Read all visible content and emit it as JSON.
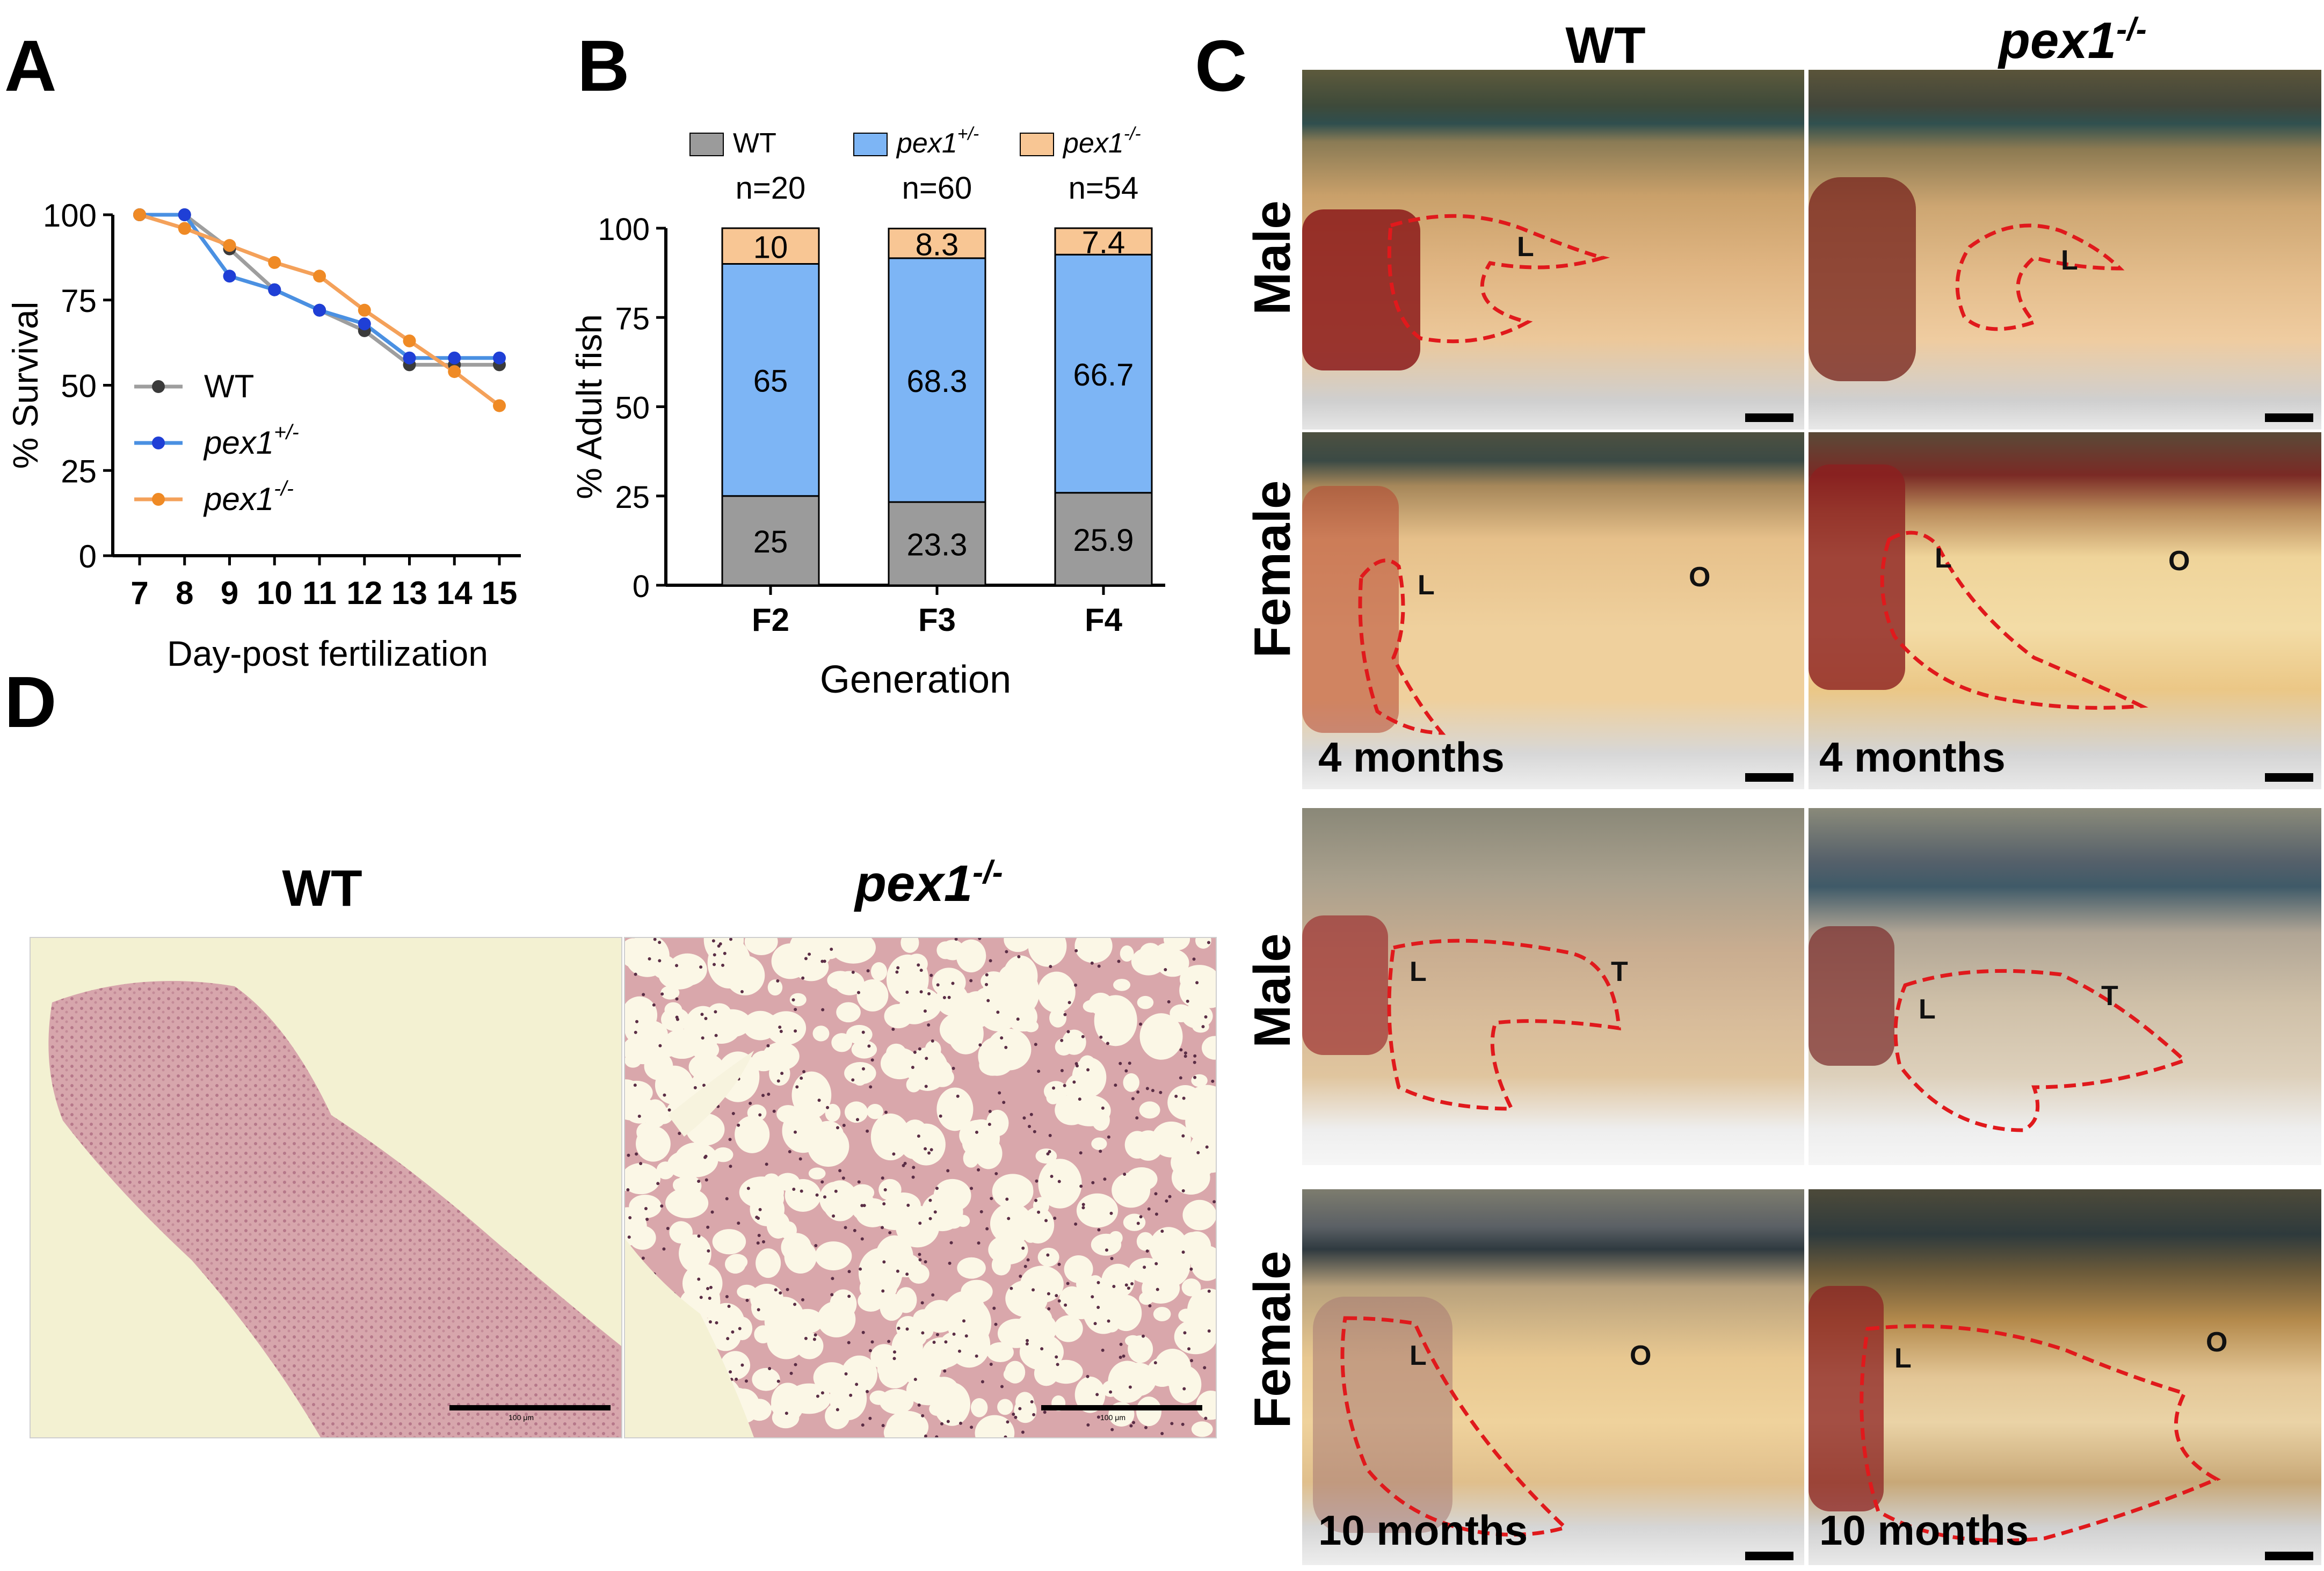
{
  "panels": {
    "A": "A",
    "B": "B",
    "C": "C",
    "D": "D"
  },
  "panelA": {
    "chart_data": {
      "type": "line",
      "xlabel": "Day-post fertilization",
      "ylabel": "% Survival",
      "x": [
        7,
        8,
        9,
        10,
        11,
        12,
        13,
        14,
        15
      ],
      "ylim": [
        0,
        100
      ],
      "yticks": [
        0,
        25,
        50,
        75,
        100
      ],
      "legend_placement": "left",
      "series": [
        {
          "name": "WT",
          "color": "#9e9e9e",
          "marker": "#3a3a3a",
          "values": [
            100,
            100,
            90,
            78,
            72,
            66,
            56,
            56,
            56
          ]
        },
        {
          "name": "pex1+/-",
          "color": "#4a90e2",
          "marker": "#1f3fd6",
          "values": [
            100,
            100,
            82,
            78,
            72,
            68,
            58,
            58,
            58
          ]
        },
        {
          "name": "pex1-/-",
          "color": "#f4a15a",
          "marker": "#ef8a25",
          "values": [
            100,
            96,
            91,
            86,
            82,
            72,
            63,
            54,
            44
          ]
        }
      ]
    },
    "legend": [
      {
        "base": "WT",
        "sup": ""
      },
      {
        "base": "pex1",
        "sup": "+/-"
      },
      {
        "base": "pex1",
        "sup": "-/-"
      }
    ]
  },
  "panelB": {
    "chart_data": {
      "type": "bar",
      "stacked": true,
      "categories": [
        "F2",
        "F3",
        "F4"
      ],
      "n_labels": [
        "n=20",
        "n=60",
        "n=54"
      ],
      "xlabel": "Generation",
      "ylabel": "% Adult fish",
      "ylim": [
        0,
        100
      ],
      "yticks": [
        0,
        25,
        50,
        75,
        100
      ],
      "legend_placement": "top",
      "series": [
        {
          "name": "WT",
          "color": "#9b9b9b",
          "values": [
            25,
            23.3,
            25.9
          ],
          "labels": [
            "25",
            "23.3",
            "25.9"
          ]
        },
        {
          "name": "pex1+/-",
          "color": "#7db5f5",
          "values": [
            65,
            68.3,
            66.7
          ],
          "labels": [
            "65",
            "68.3",
            "66.7"
          ]
        },
        {
          "name": "pex1-/-",
          "color": "#f8c694",
          "values": [
            10,
            8.3,
            7.4
          ],
          "labels": [
            "10",
            "8.3",
            "7.4"
          ]
        }
      ]
    },
    "legend": [
      {
        "base": "WT",
        "sup": ""
      },
      {
        "base": "pex1",
        "sup": "+/-"
      },
      {
        "base": "pex1",
        "sup": "-/-"
      }
    ]
  },
  "panelC": {
    "col_wt": "WT",
    "col_mut_base": "pex1",
    "col_mut_sup": "-/-",
    "row_male": "Male",
    "row_female": "Female",
    "age_4": "4 months",
    "age_10": "10 months",
    "liver": "L",
    "ovary": "O",
    "testis": "T"
  },
  "panelD": {
    "col_wt": "WT",
    "col_mut_base": "pex1",
    "col_mut_sup": "-/-",
    "scale_text": "100 μm"
  }
}
